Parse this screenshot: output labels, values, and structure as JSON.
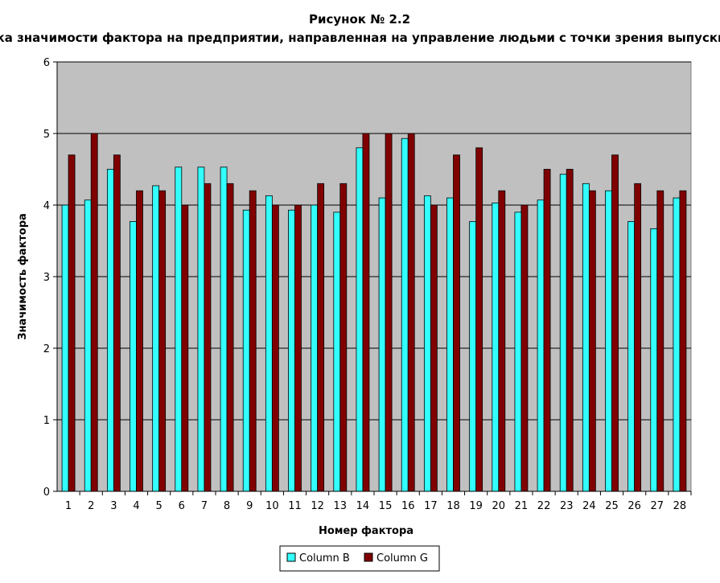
{
  "chart_data": {
    "type": "bar",
    "title": "Рисунок № 2.2",
    "subtitle": "Оценка значимости фактора  на предприятии, направленная  на управление людьми с точки зрения выпускников",
    "xlabel": "Номер фактора",
    "ylabel": "Значимость фактора",
    "ylim": [
      0,
      6
    ],
    "yticks": [
      0,
      1,
      2,
      3,
      4,
      5,
      6
    ],
    "grid": true,
    "legend_position": "bottom",
    "categories": [
      "1",
      "2",
      "3",
      "4",
      "5",
      "6",
      "7",
      "8",
      "9",
      "10",
      "11",
      "12",
      "13",
      "14",
      "15",
      "16",
      "17",
      "18",
      "19",
      "20",
      "21",
      "22",
      "23",
      "24",
      "25",
      "26",
      "27",
      "28"
    ],
    "series": [
      {
        "name": "Column B",
        "color": "#33ffff",
        "values": [
          4.0,
          4.07,
          4.5,
          3.77,
          4.27,
          4.53,
          4.53,
          4.53,
          3.93,
          4.13,
          3.93,
          4.0,
          3.9,
          4.8,
          4.1,
          4.93,
          4.13,
          4.1,
          3.77,
          4.03,
          3.9,
          4.07,
          4.43,
          4.3,
          4.2,
          3.77,
          3.67,
          4.1
        ]
      },
      {
        "name": "Column G",
        "color": "#800000",
        "values": [
          4.7,
          5.0,
          4.7,
          4.2,
          4.2,
          4.0,
          4.3,
          4.3,
          4.2,
          4.0,
          4.0,
          4.3,
          4.3,
          5.0,
          5.0,
          5.0,
          4.0,
          4.7,
          4.8,
          4.2,
          4.0,
          4.5,
          4.5,
          4.2,
          4.7,
          4.3,
          4.2,
          4.2
        ]
      }
    ],
    "plot_background": "#c0c0c0"
  }
}
